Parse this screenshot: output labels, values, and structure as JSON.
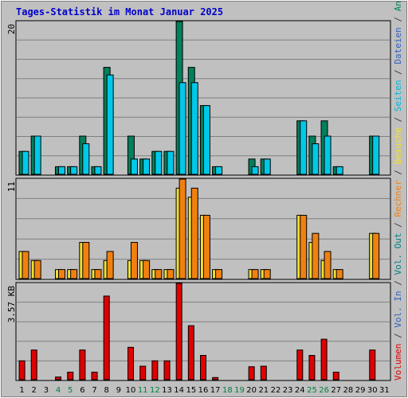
{
  "title": "Tages-Statistik im Monat Januar 2025",
  "colors": {
    "background": "#c0c0c0",
    "plot_bg": "#c0c0c0",
    "grid": "#808080",
    "title": "#0000cc",
    "anfragen": "#00805c",
    "dateien": "#00c8e8",
    "seiten": "#00b8e0",
    "besuche": "#f0e030",
    "rechner": "#f08010",
    "volumen": "#e00000",
    "weekend_label": "#008040"
  },
  "side_legend": [
    {
      "text": "Volumen",
      "color": "#e00000"
    },
    {
      "text": " / ",
      "color": "#404040"
    },
    {
      "text": "Vol. In",
      "color": "#3060c0"
    },
    {
      "text": " / ",
      "color": "#404040"
    },
    {
      "text": "Vol. Out",
      "color": "#008080"
    },
    {
      "text": " / ",
      "color": "#404040"
    },
    {
      "text": "Rechner",
      "color": "#f08010"
    },
    {
      "text": " / ",
      "color": "#404040"
    },
    {
      "text": "Besuche",
      "color": "#f0e030"
    },
    {
      "text": " / ",
      "color": "#404040"
    },
    {
      "text": "Seiten",
      "color": "#00b8e0"
    },
    {
      "text": " / ",
      "color": "#404040"
    },
    {
      "text": "Dateien",
      "color": "#3060c0"
    },
    {
      "text": " / ",
      "color": "#404040"
    },
    {
      "text": "Anfragen",
      "color": "#00805c"
    }
  ],
  "chart_data": [
    {
      "type": "bar",
      "ylabel_max": "20",
      "ylim": [
        0,
        20
      ],
      "grid": true,
      "categories": [
        "1",
        "2",
        "3",
        "4",
        "5",
        "6",
        "7",
        "8",
        "9",
        "10",
        "11",
        "12",
        "13",
        "14",
        "15",
        "16",
        "17",
        "18",
        "19",
        "20",
        "21",
        "22",
        "23",
        "24",
        "25",
        "26",
        "27",
        "28",
        "29",
        "30",
        "31"
      ],
      "weekend_days": [
        4,
        5,
        11,
        12,
        18,
        19,
        25,
        26
      ],
      "series": [
        {
          "key": "anfragen",
          "values": [
            3,
            5,
            0,
            1,
            1,
            5,
            1,
            14,
            0,
            5,
            2,
            3,
            3,
            20,
            14,
            9,
            1,
            0,
            0,
            2,
            2,
            0,
            0,
            7,
            5,
            7,
            1,
            0,
            0,
            5,
            0
          ]
        },
        {
          "key": "dateien",
          "values": [
            3,
            5,
            0,
            1,
            1,
            4,
            1,
            13,
            0,
            2,
            2,
            3,
            3,
            12,
            12,
            9,
            1,
            0,
            0,
            1,
            2,
            0,
            0,
            7,
            4,
            5,
            1,
            0,
            0,
            5,
            0
          ]
        }
      ]
    },
    {
      "type": "bar",
      "ylabel_max": "11",
      "ylim": [
        0,
        11
      ],
      "grid": true,
      "categories": [
        "1",
        "2",
        "3",
        "4",
        "5",
        "6",
        "7",
        "8",
        "9",
        "10",
        "11",
        "12",
        "13",
        "14",
        "15",
        "16",
        "17",
        "18",
        "19",
        "20",
        "21",
        "22",
        "23",
        "24",
        "25",
        "26",
        "27",
        "28",
        "29",
        "30",
        "31"
      ],
      "series": [
        {
          "key": "besuche",
          "values": [
            3,
            2,
            0,
            1,
            1,
            4,
            1,
            2,
            0,
            2,
            2,
            1,
            1,
            10,
            9,
            7,
            1,
            0,
            0,
            1,
            1,
            0,
            0,
            7,
            4,
            2,
            1,
            0,
            0,
            5,
            0
          ]
        },
        {
          "key": "rechner",
          "values": [
            3,
            2,
            0,
            1,
            1,
            4,
            1,
            3,
            0,
            4,
            2,
            1,
            1,
            11,
            10,
            7,
            1,
            0,
            0,
            1,
            1,
            0,
            0,
            7,
            5,
            3,
            1,
            0,
            0,
            5,
            0
          ]
        }
      ]
    },
    {
      "type": "bar",
      "ylabel_max": "3.57 KB",
      "ylim": [
        0,
        3.57
      ],
      "grid": true,
      "categories": [
        "1",
        "2",
        "3",
        "4",
        "5",
        "6",
        "7",
        "8",
        "9",
        "10",
        "11",
        "12",
        "13",
        "14",
        "15",
        "16",
        "17",
        "18",
        "19",
        "20",
        "21",
        "22",
        "23",
        "24",
        "25",
        "26",
        "27",
        "28",
        "29",
        "30",
        "31"
      ],
      "series": [
        {
          "key": "volumen",
          "values": [
            0.7,
            1.1,
            0,
            0.1,
            0.28,
            1.1,
            0.28,
            3.1,
            0,
            1.2,
            0.5,
            0.7,
            0.7,
            3.57,
            2.0,
            0.9,
            0.08,
            0,
            0,
            0.48,
            0.5,
            0,
            0,
            1.1,
            0.9,
            1.5,
            0.28,
            0,
            0,
            1.1,
            0
          ]
        }
      ]
    }
  ]
}
